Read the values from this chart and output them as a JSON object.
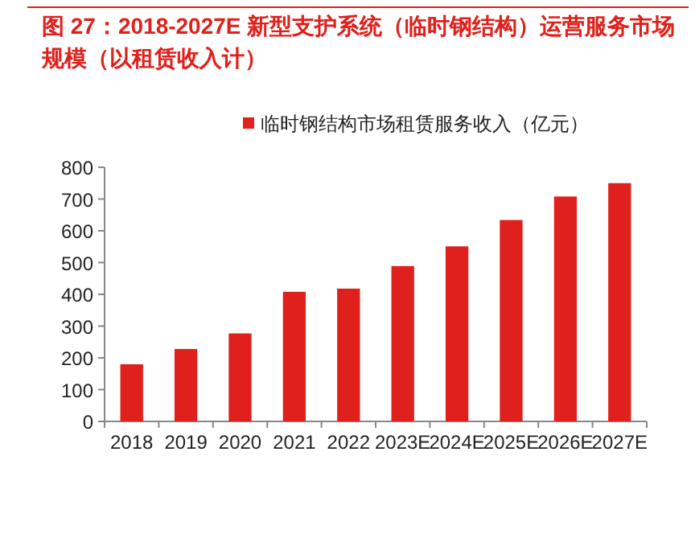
{
  "chart_data": {
    "type": "bar",
    "title": "图 27：2018-2027E 新型支护系统（临时钢结构）运营服务市场规模（以租赁收入计）",
    "categories": [
      "2018",
      "2019",
      "2020",
      "2021",
      "2022",
      "2023E",
      "2024E",
      "2025E",
      "2026E",
      "2027E"
    ],
    "series": [
      {
        "name": "临时钢结构市场租赁服务收入（亿元）",
        "color": "#e0201c",
        "values": [
          180,
          228,
          277,
          408,
          418,
          489,
          551,
          634,
          708,
          750
        ]
      }
    ],
    "ylim": [
      0,
      800
    ],
    "yticks": [
      0,
      100,
      200,
      300,
      400,
      500,
      600,
      700,
      800
    ],
    "legend": "top",
    "grid": false
  }
}
